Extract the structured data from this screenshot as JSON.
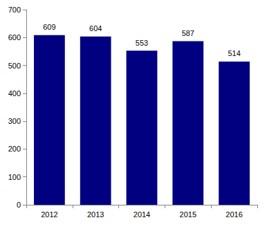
{
  "chart_data": {
    "type": "bar",
    "categories": [
      "2012",
      "2013",
      "2014",
      "2015",
      "2016"
    ],
    "values": [
      609,
      604,
      553,
      587,
      514
    ],
    "color": "#000080",
    "ylim": [
      0,
      700
    ],
    "yticks": [
      0,
      100,
      200,
      300,
      400,
      500,
      600,
      700
    ],
    "grid": false,
    "data_labels": true
  }
}
